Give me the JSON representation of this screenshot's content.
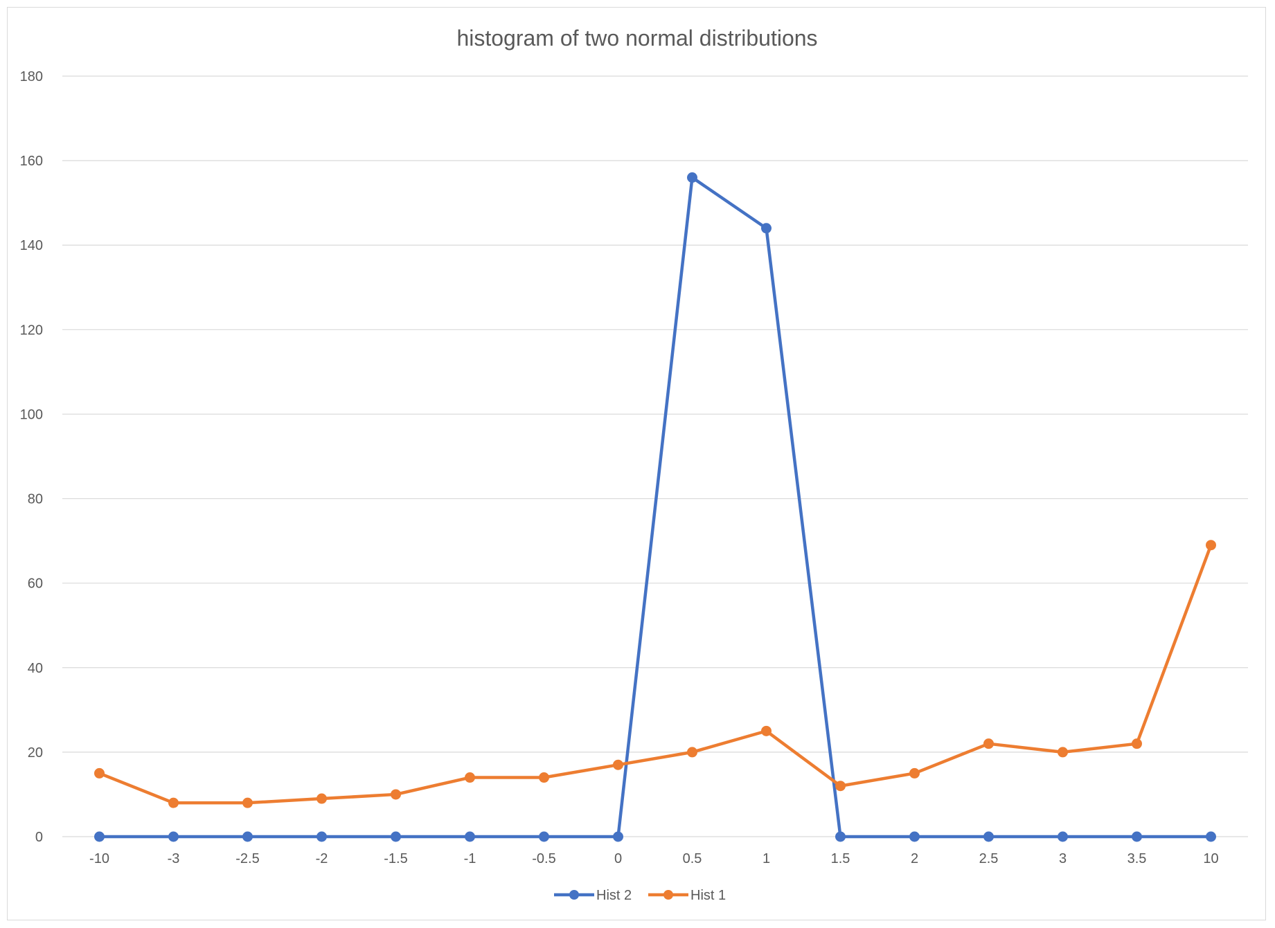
{
  "chart_data": {
    "type": "line",
    "title": "histogram of two normal distributions",
    "xlabel": "",
    "ylabel": "",
    "categories": [
      "-10",
      "-3",
      "-2.5",
      "-2",
      "-1.5",
      "-1",
      "-0.5",
      "0",
      "0.5",
      "1",
      "1.5",
      "2",
      "2.5",
      "3",
      "3.5",
      "10"
    ],
    "ylim": [
      0,
      180
    ],
    "yticks": [
      0,
      20,
      40,
      60,
      80,
      100,
      120,
      140,
      160,
      180
    ],
    "grid": true,
    "legend_position": "bottom",
    "series": [
      {
        "name": "Hist 2",
        "color": "#4472C4",
        "values": [
          0,
          0,
          0,
          0,
          0,
          0,
          0,
          0,
          156,
          144,
          0,
          0,
          0,
          0,
          0,
          0
        ]
      },
      {
        "name": "Hist 1",
        "color": "#ED7D31",
        "values": [
          15,
          8,
          8,
          9,
          10,
          14,
          14,
          17,
          20,
          25,
          12,
          15,
          22,
          20,
          22,
          69
        ]
      }
    ]
  }
}
